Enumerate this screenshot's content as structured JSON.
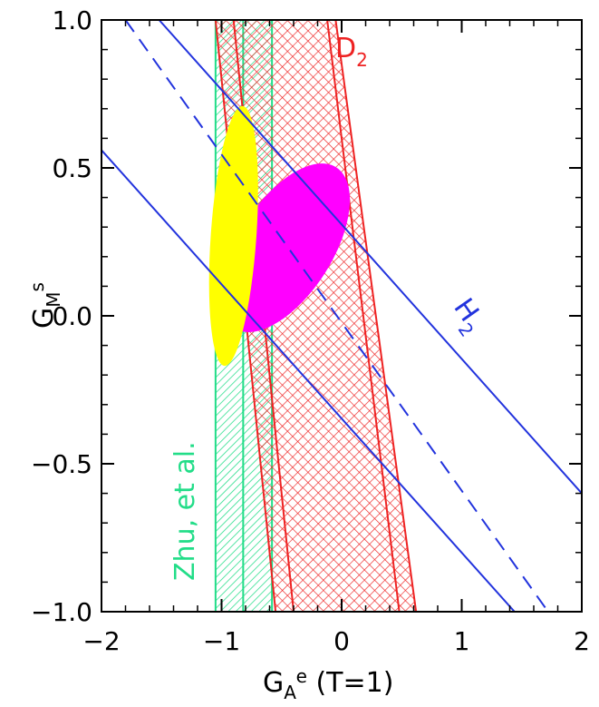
{
  "chart_data": {
    "type": "scatter",
    "xlabel": "G_A^e (T=1)",
    "ylabel": "G_M^s",
    "xlim": [
      -2,
      2
    ],
    "ylim": [
      -1,
      1
    ],
    "x_ticks": [
      "−2",
      "−1",
      "0",
      "1",
      "2"
    ],
    "y_ticks": [
      "−1.0",
      "−0.5",
      "0.0",
      "0.5",
      "1.0"
    ],
    "colors": {
      "h2": "#2233dd",
      "d2": "#ee2222",
      "zhu": "#22dd88",
      "outer_ellipse": "#ff00ff",
      "inner_ellipse": "#ffff00",
      "axes": "#000000"
    },
    "h2_band": {
      "label": "H",
      "subscript": "2",
      "center": [
        [
          -1.8,
          1.0
        ],
        [
          1.72,
          -1.0
        ]
      ],
      "upper": [
        [
          -1.52,
          1.0
        ],
        [
          2.0,
          -0.6
        ]
      ],
      "lower": [
        [
          -2.0,
          0.56
        ],
        [
          1.44,
          -1.0
        ]
      ]
    },
    "d2_band": {
      "label": "D",
      "subscript": "2",
      "left_outer": [
        [
          -1.05,
          1.0
        ],
        [
          -0.55,
          -1.0
        ]
      ],
      "left_inner": [
        [
          -0.9,
          1.0
        ],
        [
          -0.4,
          -1.0
        ]
      ],
      "right_inner": [
        [
          -0.12,
          1.0
        ],
        [
          0.48,
          -1.0
        ]
      ],
      "right_outer": [
        [
          -0.05,
          1.0
        ],
        [
          0.62,
          -1.0
        ]
      ]
    },
    "zhu_band": {
      "label": "Zhu, et al.",
      "x_min": -1.05,
      "x_center": -0.82,
      "x_max": -0.58
    },
    "outer_ellipse": {
      "cx": -0.47,
      "cy": 0.23,
      "a": 0.75,
      "b": 0.2,
      "slope_deg": -34
    },
    "inner_ellipse": {
      "cx": -0.9,
      "cy": 0.27,
      "rx": 0.19,
      "ry": 0.44
    }
  }
}
